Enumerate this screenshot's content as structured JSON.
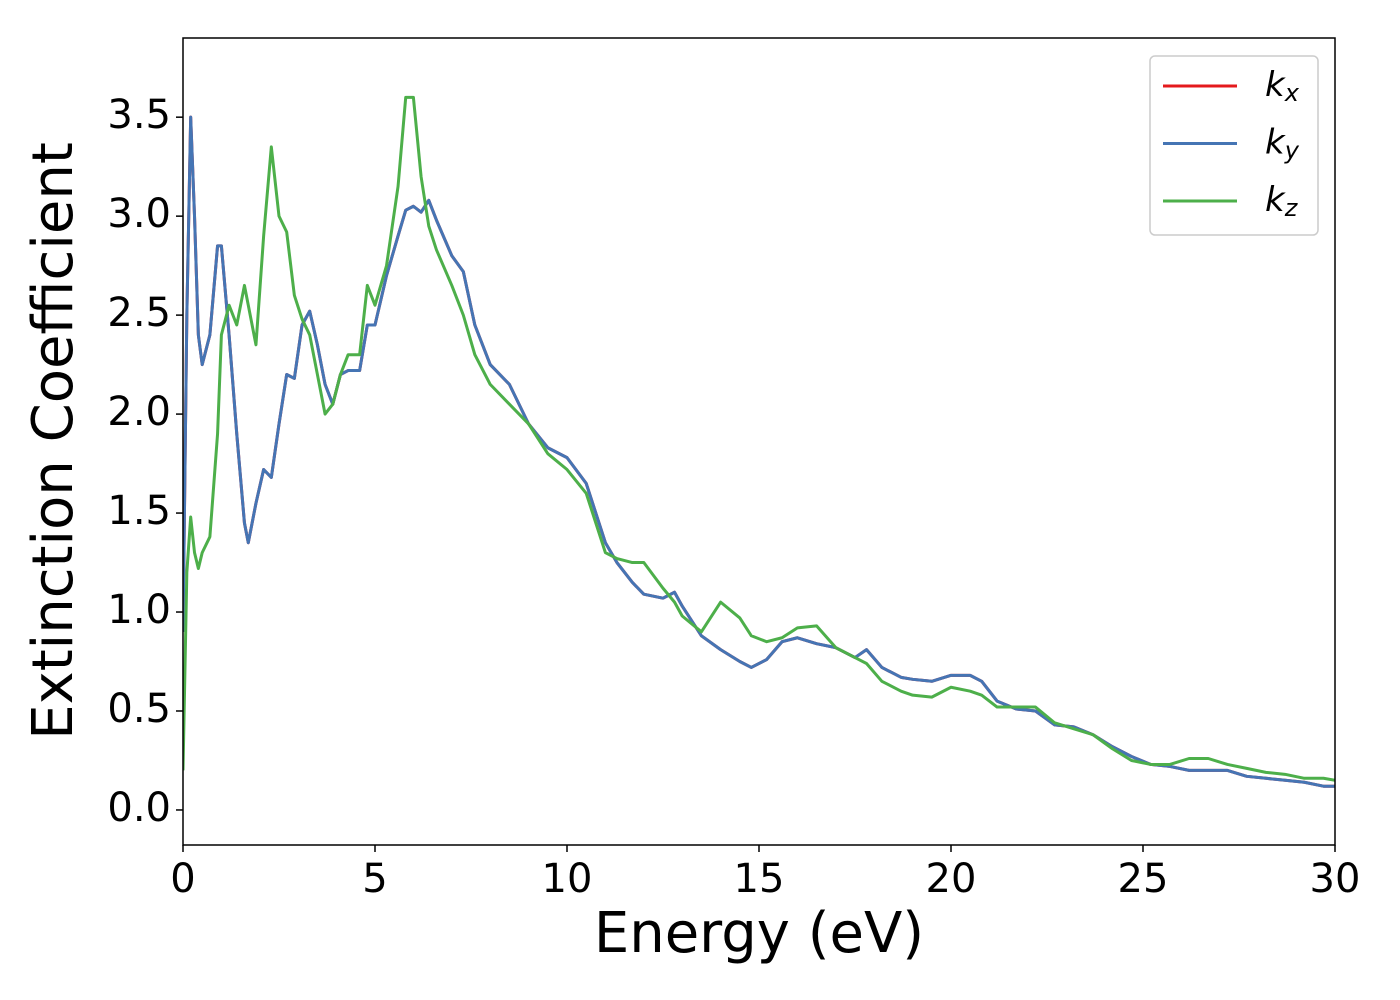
{
  "chart_data": {
    "type": "line",
    "x_label": "Energy (eV)",
    "y_label": "Extinction Coefficient",
    "xlim": [
      0,
      30
    ],
    "ylim": [
      -0.177,
      3.9
    ],
    "xticks": [
      0,
      5,
      10,
      15,
      20,
      25,
      30
    ],
    "yticks": [
      {
        "value": 0,
        "label": "0.0"
      },
      0.5,
      {
        "value": 1,
        "label": "1.0"
      },
      1.5,
      {
        "value": 2,
        "label": "2.0"
      },
      2.5,
      {
        "value": 3,
        "label": "3.0"
      },
      3.5
    ],
    "grid": false,
    "legend": "upper right",
    "x": [
      0,
      0.1,
      0.2,
      0.3,
      0.4,
      0.5,
      0.7,
      0.9,
      1.0,
      1.2,
      1.4,
      1.6,
      1.7,
      1.9,
      2.1,
      2.3,
      2.5,
      2.7,
      2.9,
      3.1,
      3.3,
      3.5,
      3.7,
      3.9,
      4.1,
      4.3,
      4.6,
      4.8,
      5.0,
      5.3,
      5.6,
      5.8,
      6.0,
      6.2,
      6.4,
      6.6,
      7.0,
      7.3,
      7.6,
      8.0,
      8.5,
      9.0,
      9.5,
      10.0,
      10.5,
      11.0,
      11.3,
      11.7,
      12.0,
      12.5,
      12.8,
      13.0,
      13.5,
      14.0,
      14.5,
      14.8,
      15.2,
      15.6,
      16.0,
      16.5,
      17.0,
      17.5,
      17.8,
      18.2,
      18.7,
      19.0,
      19.5,
      20.0,
      20.5,
      20.8,
      21.2,
      21.7,
      22.2,
      22.7,
      23.2,
      23.7,
      24.2,
      24.7,
      25.2,
      25.7,
      26.2,
      26.7,
      27.2,
      27.7,
      28.2,
      28.7,
      29.2,
      29.7,
      30
    ],
    "series": [
      {
        "name": "kx",
        "color": "#e41a1c",
        "values": [
          0.9,
          2.5,
          3.5,
          3.0,
          2.4,
          2.25,
          2.4,
          2.85,
          2.85,
          2.4,
          1.9,
          1.45,
          1.35,
          1.55,
          1.72,
          1.68,
          1.95,
          2.2,
          2.18,
          2.45,
          2.52,
          2.35,
          2.15,
          2.05,
          2.2,
          2.22,
          2.22,
          2.45,
          2.45,
          2.7,
          2.9,
          3.03,
          3.05,
          3.02,
          3.08,
          2.98,
          2.8,
          2.72,
          2.45,
          2.25,
          2.15,
          1.95,
          1.83,
          1.78,
          1.65,
          1.35,
          1.25,
          1.15,
          1.09,
          1.07,
          1.1,
          1.03,
          0.88,
          0.81,
          0.75,
          0.72,
          0.76,
          0.85,
          0.87,
          0.84,
          0.82,
          0.77,
          0.81,
          0.72,
          0.67,
          0.66,
          0.65,
          0.68,
          0.68,
          0.65,
          0.55,
          0.51,
          0.5,
          0.43,
          0.42,
          0.38,
          0.32,
          0.27,
          0.23,
          0.22,
          0.2,
          0.2,
          0.2,
          0.17,
          0.16,
          0.15,
          0.14,
          0.12,
          0.12
        ]
      },
      {
        "name": "ky",
        "color": "#4575b4",
        "values": [
          0.9,
          2.5,
          3.5,
          3.0,
          2.4,
          2.25,
          2.4,
          2.85,
          2.85,
          2.4,
          1.9,
          1.45,
          1.35,
          1.55,
          1.72,
          1.68,
          1.95,
          2.2,
          2.18,
          2.45,
          2.52,
          2.35,
          2.15,
          2.05,
          2.2,
          2.22,
          2.22,
          2.45,
          2.45,
          2.7,
          2.9,
          3.03,
          3.05,
          3.02,
          3.08,
          2.98,
          2.8,
          2.72,
          2.45,
          2.25,
          2.15,
          1.95,
          1.83,
          1.78,
          1.65,
          1.35,
          1.25,
          1.15,
          1.09,
          1.07,
          1.1,
          1.03,
          0.88,
          0.81,
          0.75,
          0.72,
          0.76,
          0.85,
          0.87,
          0.84,
          0.82,
          0.77,
          0.81,
          0.72,
          0.67,
          0.66,
          0.65,
          0.68,
          0.68,
          0.65,
          0.55,
          0.51,
          0.5,
          0.43,
          0.42,
          0.38,
          0.32,
          0.27,
          0.23,
          0.22,
          0.2,
          0.2,
          0.2,
          0.17,
          0.16,
          0.15,
          0.14,
          0.12,
          0.12
        ]
      },
      {
        "name": "kz",
        "color": "#4daf4a",
        "values": [
          0.2,
          1.2,
          1.48,
          1.3,
          1.22,
          1.3,
          1.38,
          1.9,
          2.4,
          2.55,
          2.45,
          2.65,
          2.55,
          2.35,
          2.9,
          3.35,
          3.0,
          2.92,
          2.6,
          2.48,
          2.4,
          2.2,
          2.0,
          2.05,
          2.2,
          2.3,
          2.3,
          2.65,
          2.55,
          2.75,
          3.15,
          3.6,
          3.6,
          3.2,
          2.95,
          2.83,
          2.65,
          2.5,
          2.3,
          2.15,
          2.05,
          1.95,
          1.8,
          1.72,
          1.6,
          1.3,
          1.27,
          1.25,
          1.25,
          1.12,
          1.05,
          0.98,
          0.9,
          1.05,
          0.97,
          0.88,
          0.85,
          0.87,
          0.92,
          0.93,
          0.82,
          0.77,
          0.74,
          0.65,
          0.6,
          0.58,
          0.57,
          0.62,
          0.6,
          0.58,
          0.52,
          0.52,
          0.52,
          0.44,
          0.41,
          0.38,
          0.31,
          0.25,
          0.23,
          0.23,
          0.26,
          0.26,
          0.23,
          0.21,
          0.19,
          0.18,
          0.16,
          0.16,
          0.15
        ]
      }
    ]
  }
}
